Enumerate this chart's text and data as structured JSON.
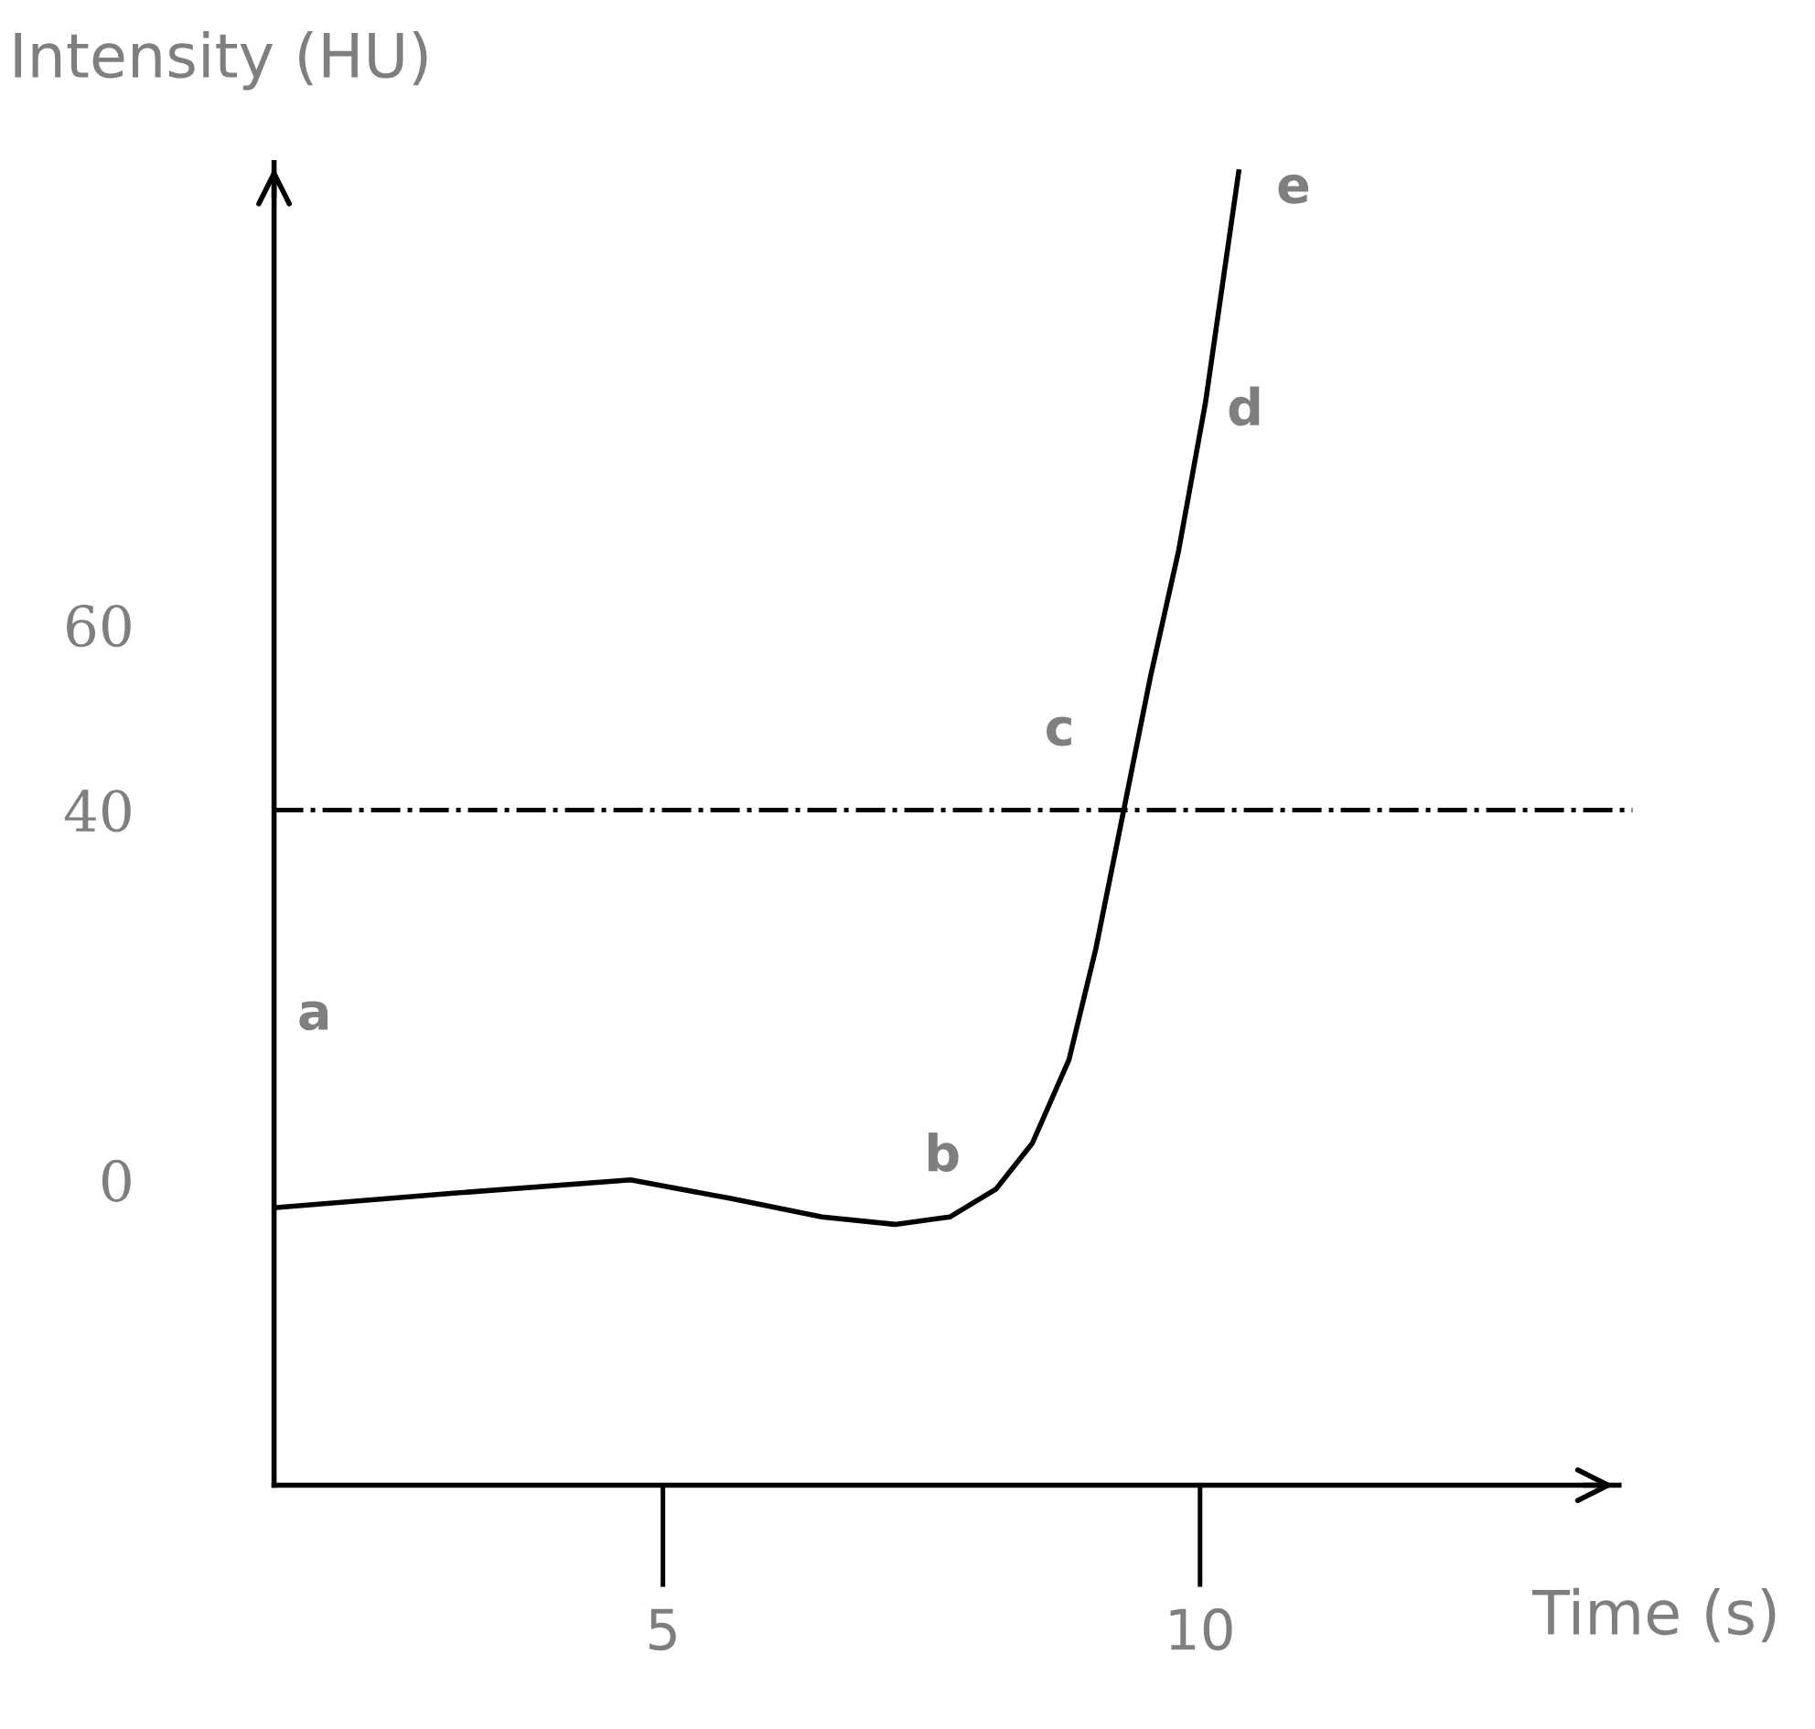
{
  "chart_data": {
    "type": "line",
    "xlabel": "Time (s)",
    "ylabel": "Intensity (HU)",
    "x": [
      1.38,
      3.08,
      4.7,
      5.63,
      6.48,
      7.16,
      7.67,
      8.1,
      8.44,
      8.78,
      9.03,
      9.29,
      9.54,
      9.8,
      10.05,
      10.36
    ],
    "series": [
      {
        "color": "#000000",
        "values": [
          -3,
          -1.4,
          0,
          -2,
          -4,
          -4.8,
          -4,
          -1,
          4,
          13,
          25,
          40,
          54.5,
          68,
          84,
          109
        ]
      }
    ],
    "xlim": [
      1.38,
      13.9
    ],
    "ylim": [
      -33,
      110
    ],
    "xticks": [
      5,
      10
    ],
    "yticks": [
      0,
      40,
      60
    ],
    "ref_lines": [
      {
        "axis": "y",
        "value": 40,
        "color": "#000000",
        "line_style": "dashdot"
      }
    ],
    "annotations": [
      "a",
      "b",
      "c",
      "d",
      "e"
    ],
    "grid": false,
    "marker": "none",
    "line_style": "solid"
  }
}
